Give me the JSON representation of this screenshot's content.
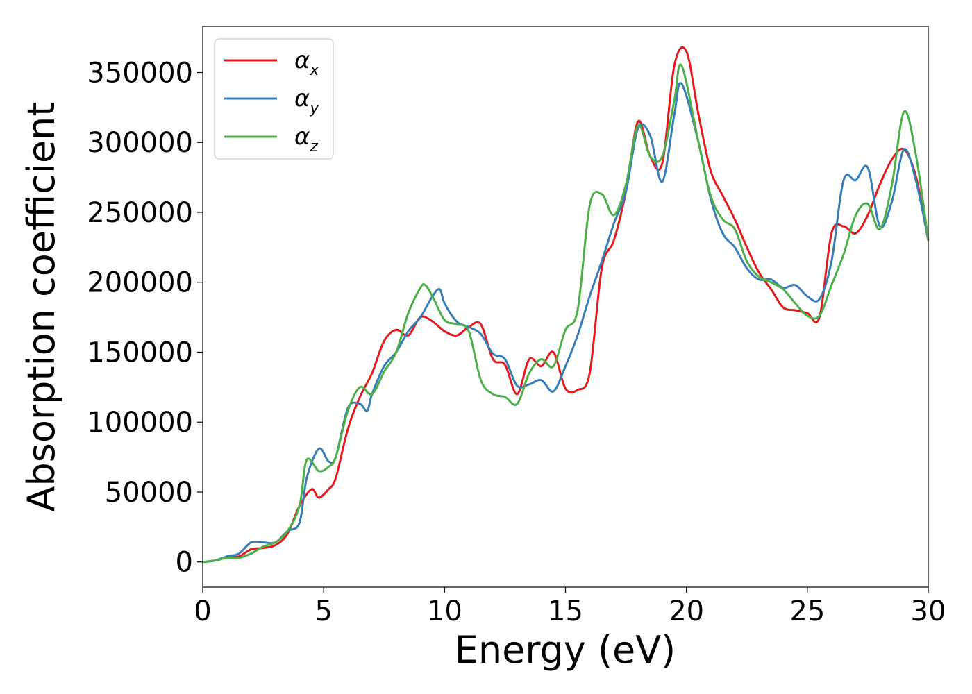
{
  "chart_data": {
    "type": "line",
    "title": "",
    "xlabel": "Energy (eV)",
    "ylabel": "Absorption coefficient",
    "xlim": [
      0,
      30
    ],
    "ylim": [
      -18000,
      383000
    ],
    "xticks": [
      0,
      5,
      10,
      15,
      20,
      25,
      30
    ],
    "yticks": [
      0,
      50000,
      100000,
      150000,
      200000,
      250000,
      300000,
      350000
    ],
    "grid": false,
    "legend_position": "top-left",
    "series": [
      {
        "name": "α_x",
        "legend_main": "α",
        "legend_sub": "x",
        "color": "#e41a1c",
        "x": [
          0,
          0.5,
          1,
          1.5,
          2,
          2.5,
          3,
          3.5,
          4,
          4.5,
          4.8,
          5.2,
          5.5,
          6,
          6.5,
          7,
          7.5,
          8,
          8.5,
          9,
          9.5,
          10,
          10.5,
          11,
          11.5,
          12,
          12.5,
          13,
          13.5,
          14,
          14.5,
          15,
          15.5,
          16,
          16.5,
          17,
          17.5,
          18,
          18.5,
          19,
          19.5,
          20,
          20.5,
          21,
          21.5,
          22,
          22.5,
          23,
          23.5,
          24,
          24.5,
          25,
          25.5,
          26,
          26.5,
          27,
          27.5,
          28,
          28.5,
          29,
          29.5,
          30
        ],
        "y": [
          0,
          1000,
          3000,
          4000,
          9000,
          10000,
          12000,
          20000,
          40000,
          52000,
          46000,
          52000,
          60000,
          95000,
          118000,
          135000,
          158000,
          166000,
          162000,
          175000,
          172000,
          165000,
          162000,
          168000,
          170000,
          145000,
          141000,
          120000,
          145000,
          140000,
          150000,
          124000,
          123000,
          135000,
          210000,
          230000,
          265000,
          315000,
          290000,
          285000,
          355000,
          365000,
          320000,
          280000,
          262000,
          245000,
          225000,
          207000,
          195000,
          182000,
          180000,
          178000,
          175000,
          235000,
          240000,
          235000,
          248000,
          270000,
          288000,
          295000,
          275000,
          230000
        ]
      },
      {
        "name": "α_y",
        "legend_main": "α",
        "legend_sub": "y",
        "color": "#377eb8",
        "x": [
          0,
          0.5,
          1,
          1.5,
          2,
          2.5,
          3,
          3.5,
          4,
          4.3,
          4.8,
          5.2,
          5.5,
          6,
          6.5,
          6.8,
          7,
          7.5,
          8,
          8.5,
          9,
          9.5,
          9.8,
          10,
          10.5,
          11,
          11.5,
          12,
          12.5,
          13,
          13.5,
          14,
          14.5,
          15,
          15.5,
          16,
          16.5,
          17,
          17.5,
          18,
          18.5,
          19,
          19.5,
          19.8,
          20.5,
          21,
          21.5,
          22,
          22.5,
          23,
          23.5,
          24,
          24.5,
          25,
          25.5,
          26,
          26.5,
          27,
          27.5,
          28,
          28.5,
          29,
          29.5,
          30
        ],
        "y": [
          0,
          1000,
          4000,
          6000,
          14000,
          14000,
          14000,
          22000,
          28000,
          60000,
          81000,
          72000,
          75000,
          110000,
          113000,
          108000,
          120000,
          140000,
          150000,
          165000,
          175000,
          190000,
          195000,
          185000,
          172000,
          168000,
          163000,
          149000,
          145000,
          126000,
          127000,
          130000,
          122000,
          140000,
          162000,
          190000,
          215000,
          242000,
          265000,
          310000,
          305000,
          272000,
          320000,
          342000,
          300000,
          260000,
          235000,
          225000,
          210000,
          202000,
          202000,
          196000,
          198000,
          190000,
          188000,
          215000,
          273000,
          273000,
          282000,
          240000,
          258000,
          295000,
          272000,
          230000
        ]
      },
      {
        "name": "α_z",
        "legend_main": "α",
        "legend_sub": "z",
        "color": "#4daf4a",
        "x": [
          0,
          0.5,
          1,
          1.5,
          2,
          2.5,
          3,
          3.5,
          4,
          4.3,
          4.8,
          5.2,
          5.5,
          6,
          6.5,
          7,
          7.5,
          8,
          8.5,
          9,
          9.2,
          9.5,
          10,
          10.5,
          11,
          11.5,
          12,
          12.5,
          13,
          13.5,
          14,
          14.5,
          15,
          15.5,
          16,
          16.5,
          17,
          17.5,
          18,
          18.5,
          19,
          19.5,
          19.8,
          20.5,
          21,
          21.5,
          22,
          22.5,
          23,
          23.5,
          24,
          24.5,
          25,
          25.5,
          26,
          26.5,
          27,
          27.5,
          28,
          28.5,
          29,
          29.5,
          30
        ],
        "y": [
          0,
          1000,
          3000,
          3000,
          6000,
          11000,
          14000,
          22000,
          40000,
          73000,
          65000,
          68000,
          75000,
          108000,
          125000,
          120000,
          136000,
          150000,
          178000,
          196000,
          198000,
          190000,
          173000,
          170000,
          165000,
          130000,
          120000,
          118000,
          113000,
          135000,
          145000,
          140000,
          166000,
          180000,
          255000,
          263000,
          248000,
          270000,
          312000,
          290000,
          290000,
          330000,
          355000,
          300000,
          262000,
          245000,
          238000,
          215000,
          204000,
          200000,
          195000,
          185000,
          176000,
          176000,
          198000,
          220000,
          248000,
          256000,
          238000,
          270000,
          322000,
          290000,
          230000
        ]
      }
    ]
  }
}
